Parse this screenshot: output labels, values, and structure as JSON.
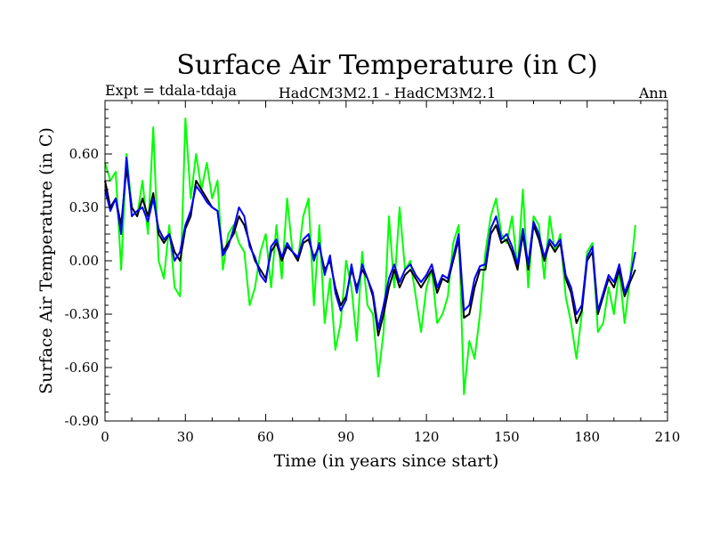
{
  "chart_data": {
    "type": "line",
    "title": "Surface Air Temperature (in C)",
    "subtitle_left": "Expt = tdala-tdaja",
    "subtitle_center": "HadCM3M2.1 - HadCM3M2.1",
    "subtitle_right": "Ann",
    "xlabel": "Time (in years since start)",
    "ylabel": "Surface Air Temperature (in C)",
    "xlim": [
      0,
      210
    ],
    "ylim": [
      -0.9,
      0.9
    ],
    "x_ticks": [
      0,
      30,
      60,
      90,
      120,
      150,
      180,
      210
    ],
    "x_tick_labels": [
      "0",
      "30",
      "60",
      "90",
      "120",
      "150",
      "180",
      "210"
    ],
    "y_ticks": [
      -0.9,
      -0.6,
      -0.3,
      0.0,
      0.3,
      0.6
    ],
    "y_tick_labels": [
      "-0.90",
      "-0.60",
      "-0.30",
      "0.00",
      "0.30",
      "0.60"
    ],
    "grid": false,
    "legend": "none",
    "x": [
      0,
      2,
      4,
      6,
      8,
      10,
      12,
      14,
      16,
      18,
      20,
      22,
      24,
      26,
      28,
      30,
      32,
      34,
      36,
      38,
      40,
      42,
      44,
      46,
      48,
      50,
      52,
      54,
      56,
      58,
      60,
      62,
      64,
      66,
      68,
      70,
      72,
      74,
      76,
      78,
      80,
      82,
      84,
      86,
      88,
      90,
      92,
      94,
      96,
      98,
      100,
      102,
      104,
      106,
      108,
      110,
      112,
      114,
      116,
      118,
      120,
      122,
      124,
      126,
      128,
      130,
      132,
      134,
      136,
      138,
      140,
      142,
      144,
      146,
      148,
      150,
      152,
      154,
      156,
      158,
      160,
      162,
      164,
      166,
      168,
      170,
      172,
      174,
      176,
      178,
      180,
      182,
      184,
      186,
      188,
      190,
      192,
      194,
      196,
      198
    ],
    "series": [
      {
        "name": "black",
        "color": "#000000",
        "values": [
          0.45,
          0.3,
          0.35,
          0.2,
          0.52,
          0.3,
          0.25,
          0.35,
          0.25,
          0.38,
          0.15,
          0.1,
          0.15,
          0.05,
          0.0,
          0.18,
          0.25,
          0.45,
          0.4,
          0.35,
          0.3,
          0.28,
          0.05,
          0.1,
          0.15,
          0.25,
          0.2,
          0.1,
          0.0,
          -0.05,
          -0.1,
          0.05,
          0.1,
          0.0,
          0.08,
          0.05,
          0.0,
          0.1,
          0.12,
          0.02,
          0.08,
          -0.05,
          0.0,
          -0.15,
          -0.25,
          -0.2,
          -0.05,
          -0.15,
          -0.05,
          -0.1,
          -0.2,
          -0.42,
          -0.3,
          -0.15,
          -0.05,
          -0.15,
          -0.08,
          -0.05,
          -0.1,
          -0.15,
          -0.1,
          -0.05,
          -0.18,
          -0.1,
          -0.12,
          0.0,
          0.12,
          -0.32,
          -0.3,
          -0.15,
          -0.05,
          -0.05,
          0.15,
          0.2,
          0.1,
          0.12,
          0.05,
          -0.05,
          0.15,
          -0.05,
          0.2,
          0.12,
          0.0,
          0.1,
          0.05,
          0.1,
          -0.1,
          -0.18,
          -0.35,
          -0.28,
          0.0,
          0.05,
          -0.3,
          -0.2,
          -0.1,
          -0.15,
          -0.05,
          -0.2,
          -0.12,
          -0.05
        ]
      },
      {
        "name": "green",
        "color": "#00ff00",
        "values": [
          0.55,
          0.45,
          0.5,
          -0.05,
          0.6,
          0.3,
          0.25,
          0.45,
          0.15,
          0.75,
          0.0,
          -0.1,
          0.2,
          -0.15,
          -0.2,
          0.8,
          0.35,
          0.6,
          0.4,
          0.55,
          0.35,
          0.45,
          -0.05,
          0.15,
          0.2,
          0.1,
          0.05,
          -0.25,
          -0.15,
          0.05,
          0.15,
          -0.15,
          0.2,
          -0.1,
          0.35,
          0.05,
          0.0,
          0.25,
          0.35,
          -0.25,
          0.2,
          -0.35,
          -0.1,
          -0.5,
          -0.35,
          0.0,
          -0.15,
          -0.45,
          0.05,
          -0.25,
          -0.3,
          -0.65,
          -0.4,
          0.25,
          -0.15,
          0.3,
          -0.05,
          0.0,
          -0.2,
          -0.4,
          -0.15,
          -0.05,
          -0.35,
          -0.3,
          -0.2,
          0.1,
          0.2,
          -0.75,
          -0.45,
          -0.55,
          -0.3,
          0.05,
          0.25,
          0.35,
          0.15,
          0.1,
          0.25,
          -0.05,
          0.4,
          -0.15,
          0.25,
          0.2,
          -0.1,
          0.25,
          0.05,
          0.15,
          -0.2,
          -0.35,
          -0.55,
          -0.3,
          0.05,
          0.1,
          -0.4,
          -0.35,
          -0.15,
          -0.3,
          -0.05,
          -0.35,
          -0.1,
          0.2
        ]
      },
      {
        "name": "blue",
        "color": "#0000ff",
        "values": [
          0.4,
          0.28,
          0.35,
          0.15,
          0.58,
          0.25,
          0.28,
          0.3,
          0.22,
          0.35,
          0.18,
          0.12,
          0.15,
          0.0,
          0.05,
          0.2,
          0.28,
          0.42,
          0.38,
          0.33,
          0.3,
          0.28,
          0.03,
          0.08,
          0.18,
          0.3,
          0.25,
          0.08,
          0.02,
          -0.08,
          -0.12,
          0.08,
          0.12,
          0.02,
          0.1,
          0.05,
          0.02,
          0.12,
          0.15,
          0.0,
          0.1,
          -0.08,
          0.03,
          -0.18,
          -0.28,
          -0.22,
          -0.02,
          -0.18,
          -0.02,
          -0.1,
          -0.18,
          -0.38,
          -0.25,
          -0.1,
          -0.02,
          -0.12,
          -0.05,
          -0.02,
          -0.08,
          -0.12,
          -0.08,
          -0.02,
          -0.15,
          -0.08,
          -0.1,
          0.02,
          0.15,
          -0.28,
          -0.25,
          -0.1,
          -0.03,
          -0.02,
          0.18,
          0.25,
          0.12,
          0.15,
          0.08,
          -0.02,
          0.18,
          -0.02,
          0.22,
          0.15,
          0.02,
          0.12,
          0.08,
          0.12,
          -0.08,
          -0.15,
          -0.3,
          -0.25,
          0.02,
          0.08,
          -0.28,
          -0.18,
          -0.08,
          -0.12,
          -0.02,
          -0.18,
          -0.1,
          0.05
        ]
      }
    ]
  }
}
